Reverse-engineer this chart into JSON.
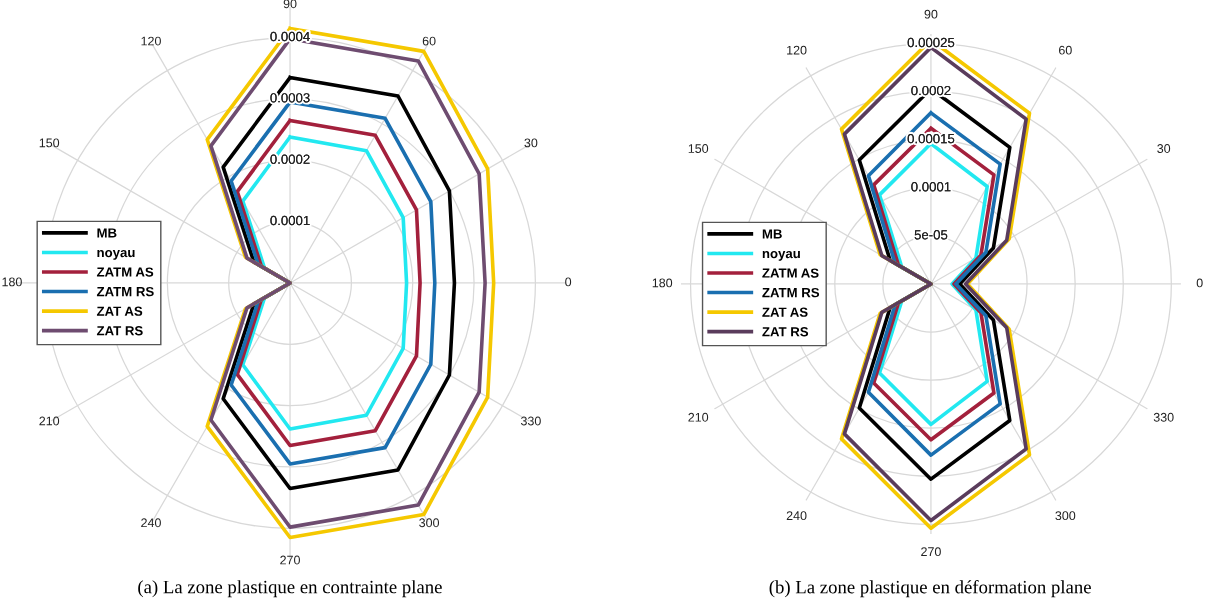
{
  "chart_data": [
    {
      "type": "radar",
      "title": "(a) La zone plastique en contrainte plane",
      "categories": [
        "90",
        "60",
        "30",
        "0",
        "330",
        "300",
        "270",
        "240",
        "210",
        "180",
        "150",
        "120"
      ],
      "ylim": [
        0,
        0.00045
      ],
      "yticks": [
        0.0001,
        0.0002,
        0.0003,
        0.0004
      ],
      "grid": true,
      "legend": "left",
      "series": [
        {
          "name": "MB",
          "color": "#000000",
          "values": [
            0.000335,
            0.000352,
            0.0003,
            0.000268,
            0.0003,
            0.000352,
            0.000335,
            0.000218,
            6.8e-05,
            0,
            6.8e-05,
            0.000218
          ]
        },
        {
          "name": "noyau",
          "color": "#22e8f0",
          "values": [
            0.000238,
            0.000249,
            0.000213,
            0.00019,
            0.000213,
            0.000249,
            0.000238,
            0.000154,
            4.8e-05,
            0,
            4.8e-05,
            0.000154
          ]
        },
        {
          "name": "ZATM AS",
          "color": "#a3203c",
          "values": [
            0.000265,
            0.000278,
            0.000238,
            0.000212,
            0.000238,
            0.000278,
            0.000265,
            0.000172,
            5.4e-05,
            0,
            5.4e-05,
            0.000172
          ]
        },
        {
          "name": "ZATM RS",
          "color": "#1a6fb0",
          "values": [
            0.000295,
            0.00031,
            0.000265,
            0.000236,
            0.000265,
            0.00031,
            0.000295,
            0.000192,
            6e-05,
            0,
            6e-05,
            0.000192
          ]
        },
        {
          "name": "ZAT AS",
          "color": "#f5c800",
          "values": [
            0.000415,
            0.000436,
            0.000372,
            0.000332,
            0.000372,
            0.000436,
            0.000415,
            0.00027,
            8.4e-05,
            0,
            8.4e-05,
            0.00027
          ]
        },
        {
          "name": "ZAT RS",
          "color": "#6e4c70",
          "values": [
            0.000398,
            0.000418,
            0.000356,
            0.000318,
            0.000356,
            0.000418,
            0.000398,
            0.000258,
            8.1e-05,
            0,
            8.1e-05,
            0.000258
          ]
        }
      ]
    },
    {
      "type": "radar",
      "title": "(b) La zone plastique en déformation plane",
      "categories": [
        "90",
        "60",
        "30",
        "0",
        "330",
        "300",
        "270",
        "240",
        "210",
        "180",
        "150",
        "120"
      ],
      "ylim": [
        0,
        0.00026
      ],
      "yticks": [
        5e-05,
        0.0001,
        0.00015,
        0.0002,
        0.00025
      ],
      "grid": true,
      "legend": "left",
      "series": [
        {
          "name": "MB",
          "color": "#000000",
          "values": [
            0.000203,
            0.000164,
            7.5e-05,
            3e-05,
            7.5e-05,
            0.000164,
            0.000203,
            0.000149,
            4.9e-05,
            0,
            4.9e-05,
            0.000149
          ]
        },
        {
          "name": "noyau",
          "color": "#22e8f0",
          "values": [
            0.000146,
            0.000117,
            5.4e-05,
            2.2e-05,
            5.4e-05,
            0.000117,
            0.000146,
            0.000107,
            3.5e-05,
            0,
            3.5e-05,
            0.000107
          ]
        },
        {
          "name": "ZATM AS",
          "color": "#a3203c",
          "values": [
            0.000162,
            0.000131,
            6e-05,
            2.4e-05,
            6e-05,
            0.000131,
            0.000162,
            0.000119,
            3.9e-05,
            0,
            3.9e-05,
            0.000119
          ]
        },
        {
          "name": "ZATM RS",
          "color": "#1a6fb0",
          "values": [
            0.000178,
            0.000144,
            6.6e-05,
            2.6e-05,
            6.6e-05,
            0.000144,
            0.000178,
            0.00013,
            4.3e-05,
            0,
            4.3e-05,
            0.00013
          ]
        },
        {
          "name": "ZAT AS",
          "color": "#f5c800",
          "values": [
            0.000254,
            0.000205,
            9.4e-05,
            3.8e-05,
            9.4e-05,
            0.000205,
            0.000254,
            0.000186,
            6.1e-05,
            0,
            6.1e-05,
            0.000186
          ]
        },
        {
          "name": "ZAT RS",
          "color": "#5a3c5c",
          "values": [
            0.000246,
            0.000198,
            9.1e-05,
            3.6e-05,
            9.1e-05,
            0.000198,
            0.000246,
            0.00018,
            5.9e-05,
            0,
            5.9e-05,
            0.00018
          ]
        }
      ]
    }
  ]
}
